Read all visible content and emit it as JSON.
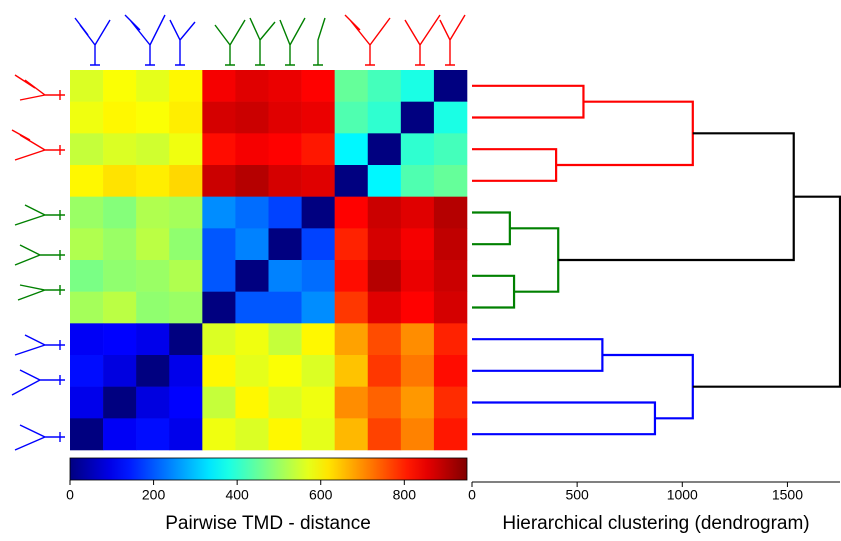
{
  "chart_data": [
    {
      "type": "heatmap",
      "colormap": "jet",
      "xlabel": "Pairwise TMD - distance",
      "clim": [
        0,
        950
      ],
      "cticks": [
        0,
        200,
        400,
        600,
        800
      ],
      "matrix": [
        [
          560,
          590,
          570,
          600,
          840,
          860,
          850,
          830,
          450,
          420,
          380,
          0
        ],
        [
          580,
          600,
          590,
          610,
          870,
          880,
          860,
          850,
          430,
          400,
          0,
          380
        ],
        [
          540,
          560,
          550,
          580,
          820,
          840,
          830,
          810,
          350,
          0,
          400,
          420
        ],
        [
          600,
          620,
          610,
          630,
          880,
          900,
          870,
          860,
          0,
          350,
          430,
          450
        ],
        [
          500,
          480,
          520,
          510,
          250,
          220,
          180,
          0,
          830,
          880,
          860,
          900
        ],
        [
          520,
          500,
          530,
          490,
          200,
          240,
          0,
          180,
          800,
          870,
          840,
          890
        ],
        [
          470,
          490,
          500,
          520,
          200,
          0,
          240,
          220,
          820,
          900,
          850,
          880
        ],
        [
          510,
          530,
          490,
          500,
          0,
          200,
          200,
          250,
          780,
          860,
          830,
          870
        ],
        [
          110,
          120,
          100,
          0,
          560,
          580,
          540,
          600,
          680,
          760,
          700,
          800
        ],
        [
          130,
          90,
          0,
          100,
          600,
          570,
          590,
          560,
          650,
          780,
          720,
          820
        ],
        [
          100,
          0,
          90,
          120,
          540,
          600,
          560,
          580,
          700,
          740,
          690,
          790
        ],
        [
          0,
          110,
          130,
          100,
          580,
          560,
          600,
          570,
          660,
          770,
          710,
          810
        ]
      ]
    },
    {
      "type": "dendrogram",
      "xlabel": "Hierarchical clustering (dendrogram)",
      "xlim": [
        0,
        1750
      ],
      "xticks": [
        0,
        500,
        1000,
        1500
      ],
      "merges": [
        [
          0,
          1,
          530
        ],
        [
          2,
          3,
          400
        ],
        [
          12,
          13,
          1050
        ],
        [
          4,
          5,
          180
        ],
        [
          6,
          7,
          200
        ],
        [
          15,
          16,
          410
        ],
        [
          8,
          9,
          620
        ],
        [
          10,
          11,
          870
        ],
        [
          18,
          19,
          1050
        ],
        [
          14,
          17,
          1530
        ],
        [
          21,
          20,
          1750
        ]
      ],
      "colors": [
        "#ff0000",
        "#ff0000",
        "#ff0000",
        "#008000",
        "#008000",
        "#008000",
        "#0000ff",
        "#0000ff",
        "#0000ff",
        "#000000",
        "#000000"
      ]
    }
  ]
}
